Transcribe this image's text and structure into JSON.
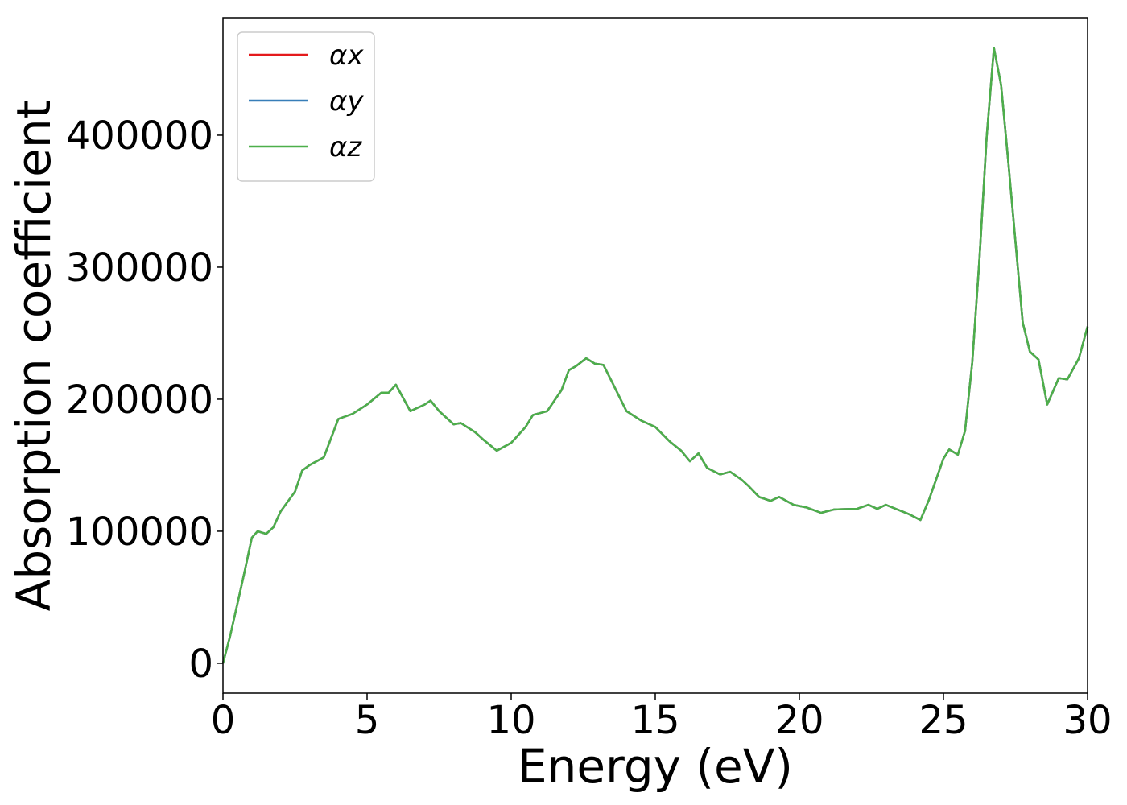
{
  "chart_data": {
    "type": "line",
    "xlabel": "Energy (eV)",
    "ylabel": "Absorption coefficient",
    "x": [
      0,
      0.25,
      0.5,
      0.75,
      1.0,
      1.2,
      1.5,
      1.75,
      2.0,
      2.5,
      2.75,
      3.0,
      3.5,
      4.0,
      4.5,
      5.0,
      5.5,
      5.75,
      6.0,
      6.5,
      7.0,
      7.2,
      7.5,
      8.0,
      8.25,
      8.75,
      9.0,
      9.5,
      10.0,
      10.5,
      10.75,
      11.25,
      11.75,
      12.0,
      12.25,
      12.6,
      12.9,
      13.2,
      13.5,
      14.0,
      14.5,
      15.0,
      15.5,
      15.9,
      16.2,
      16.5,
      16.8,
      17.25,
      17.6,
      18.0,
      18.25,
      18.6,
      19.0,
      19.3,
      19.8,
      20.25,
      20.75,
      21.2,
      22.0,
      22.4,
      22.7,
      23.0,
      23.4,
      23.8,
      24.2,
      24.5,
      25.0,
      25.2,
      25.5,
      25.75,
      26.0,
      26.25,
      26.5,
      26.75,
      27.0,
      27.25,
      27.5,
      27.75,
      28.0,
      28.3,
      28.6,
      29.0,
      29.3,
      29.7,
      30
    ],
    "series": [
      {
        "name": "αx",
        "color": "#e41a1c",
        "values": [
          0,
          20700,
          45000,
          69500,
          95000,
          100000,
          98000,
          103000,
          115000,
          130000,
          146000,
          150000,
          156000,
          185000,
          189000,
          196000,
          205000,
          205000,
          211000,
          191000,
          196000,
          199000,
          191000,
          181000,
          182000,
          175000,
          170000,
          161000,
          167000,
          179000,
          188000,
          191000,
          207000,
          222000,
          225000,
          231000,
          227000,
          226000,
          213000,
          191000,
          184000,
          179000,
          168000,
          161000,
          153000,
          159000,
          148000,
          143000,
          145000,
          139000,
          134000,
          126000,
          123000,
          126000,
          120000,
          118000,
          114000,
          116500,
          117000,
          120000,
          117000,
          120000,
          116500,
          113000,
          108500,
          124000,
          155000,
          162000,
          158000,
          176000,
          228000,
          307000,
          399000,
          466000,
          438000,
          380000,
          319000,
          258000,
          236000,
          230000,
          196000,
          216000,
          215000,
          231000,
          255000
        ]
      },
      {
        "name": "αy",
        "color": "#377eb8",
        "values": [
          0,
          20700,
          45000,
          69500,
          95000,
          100000,
          98000,
          103000,
          115000,
          130000,
          146000,
          150000,
          156000,
          185000,
          189000,
          196000,
          205000,
          205000,
          211000,
          191000,
          196000,
          199000,
          191000,
          181000,
          182000,
          175000,
          170000,
          161000,
          167000,
          179000,
          188000,
          191000,
          207000,
          222000,
          225000,
          231000,
          227000,
          226000,
          213000,
          191000,
          184000,
          179000,
          168000,
          161000,
          153000,
          159000,
          148000,
          143000,
          145000,
          139000,
          134000,
          126000,
          123000,
          126000,
          120000,
          118000,
          114000,
          116500,
          117000,
          120000,
          117000,
          120000,
          116500,
          113000,
          108500,
          124000,
          155000,
          162000,
          158000,
          176000,
          228000,
          307000,
          399000,
          466000,
          438000,
          380000,
          319000,
          258000,
          236000,
          230000,
          196000,
          216000,
          215000,
          231000,
          255000
        ]
      },
      {
        "name": "αz",
        "color": "#4daf4a",
        "values": [
          0,
          20700,
          45000,
          69500,
          95000,
          100000,
          98000,
          103000,
          115000,
          130000,
          146000,
          150000,
          156000,
          185000,
          189000,
          196000,
          205000,
          205000,
          211000,
          191000,
          196000,
          199000,
          191000,
          181000,
          182000,
          175000,
          170000,
          161000,
          167000,
          179000,
          188000,
          191000,
          207000,
          222000,
          225000,
          231000,
          227000,
          226000,
          213000,
          191000,
          184000,
          179000,
          168000,
          161000,
          153000,
          159000,
          148000,
          143000,
          145000,
          139000,
          134000,
          126000,
          123000,
          126000,
          120000,
          118000,
          114000,
          116500,
          117000,
          120000,
          117000,
          120000,
          116500,
          113000,
          108500,
          124000,
          155000,
          162000,
          158000,
          176000,
          228000,
          307000,
          399000,
          466000,
          438000,
          380000,
          319000,
          258000,
          236000,
          230000,
          196000,
          216000,
          215000,
          231000,
          255000
        ]
      }
    ],
    "xlim": [
      0,
      30
    ],
    "xticks": [
      0,
      5,
      10,
      15,
      20,
      25,
      30
    ],
    "ylim": [
      -22600,
      489000
    ],
    "yticks": [
      0,
      100000,
      200000,
      300000,
      400000
    ],
    "grid": false,
    "legend": "upper-left"
  }
}
